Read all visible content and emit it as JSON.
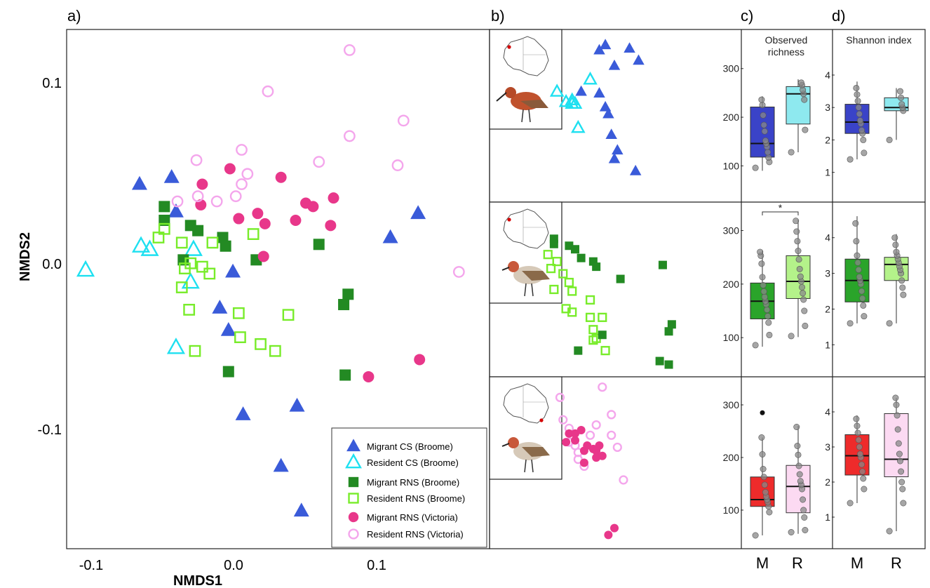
{
  "colors": {
    "migrant_cs": "#3a5bd9",
    "resident_cs": "#1ee0f0",
    "migrant_rns_broome": "#238a23",
    "resident_rns_broome": "#78ec2a",
    "migrant_rns_victoria": "#e8378a",
    "resident_rns_victoria": "#f4a6ec",
    "box_cs_m": "#3a43c8",
    "box_cs_r": "#8ee9ef",
    "box_rns_b_m": "#2aa42a",
    "box_rns_b_r": "#b4f28a",
    "box_rns_v_m": "#ee2b2b",
    "box_rns_v_r": "#fcdaf2"
  },
  "panels": {
    "a": "a)",
    "b": "b)",
    "c": "c)",
    "d": "d)"
  },
  "chart_data": [
    {
      "type": "scatter",
      "panel": "a",
      "xlabel": "NMDS1",
      "ylabel": "NMDS2",
      "xticks": [
        "-0.1",
        "0.0",
        "0.1"
      ],
      "yticks": [
        "0.1",
        "0.0",
        "-0.1"
      ],
      "xlim": [
        -0.115,
        0.175
      ],
      "ylim": [
        -0.172,
        0.13
      ],
      "legend_position": "bottom-right",
      "series": [
        {
          "name": "Migrant CS (Broome)",
          "marker": "triangle-filled",
          "color_key": "migrant_cs",
          "x": [
            -0.065,
            -0.043,
            -0.04,
            -0.001,
            -0.01,
            0.006,
            0.043,
            0.032,
            0.046,
            0.107,
            0.126,
            -0.004
          ],
          "y": [
            0.04,
            0.044,
            0.024,
            -0.011,
            -0.032,
            -0.094,
            -0.089,
            -0.124,
            -0.15,
            0.009,
            0.023,
            -0.045
          ]
        },
        {
          "name": "Resident CS (Broome)",
          "marker": "triangle-open",
          "color_key": "resident_cs",
          "x": [
            -0.102,
            -0.064,
            -0.058,
            -0.028,
            -0.04,
            -0.03
          ],
          "y": [
            -0.01,
            0.004,
            0.002,
            0.002,
            -0.055,
            -0.017
          ]
        },
        {
          "name": "Migrant RNS (Broome)",
          "marker": "square-filled",
          "color_key": "migrant_rns_broome",
          "x": [
            -0.048,
            -0.048,
            -0.03,
            -0.025,
            -0.008,
            -0.006,
            0.015,
            0.058,
            0.078,
            0.075,
            0.076,
            -0.004,
            -0.035
          ],
          "y": [
            0.027,
            0.019,
            0.016,
            0.013,
            0.009,
            0.004,
            -0.004,
            0.005,
            -0.024,
            -0.03,
            -0.071,
            -0.069,
            -0.004
          ]
        },
        {
          "name": "Resident RNS (Broome)",
          "marker": "square-open",
          "color_key": "resident_rns_broome",
          "x": [
            -0.048,
            -0.052,
            -0.036,
            -0.034,
            -0.015,
            -0.03,
            -0.022,
            -0.017,
            0.013,
            -0.036,
            0.003,
            0.037,
            -0.031,
            0.004,
            0.018,
            0.028,
            -0.027
          ],
          "y": [
            0.014,
            0.009,
            0.006,
            -0.009,
            0.006,
            -0.006,
            -0.008,
            -0.012,
            0.011,
            -0.02,
            -0.035,
            -0.036,
            -0.033,
            -0.049,
            -0.053,
            -0.057,
            -0.057
          ]
        },
        {
          "name": "Migrant RNS (Victoria)",
          "marker": "circle-filled",
          "color_key": "migrant_rns_victoria",
          "x": [
            -0.003,
            -0.022,
            0.032,
            0.003,
            0.016,
            0.021,
            -0.023,
            0.042,
            0.049,
            0.054,
            0.066,
            0.068,
            0.02,
            0.092,
            0.127
          ],
          "y": [
            0.049,
            0.04,
            0.044,
            0.02,
            0.023,
            0.017,
            0.028,
            0.019,
            0.029,
            0.027,
            0.016,
            0.032,
            -0.002,
            -0.072,
            -0.062
          ]
        },
        {
          "name": "Resident RNS (Victoria)",
          "marker": "circle-open",
          "color_key": "resident_rns_victoria",
          "x": [
            0.079,
            0.023,
            0.116,
            0.079,
            -0.026,
            0.005,
            0.009,
            0.058,
            0.112,
            -0.039,
            -0.025,
            -0.012,
            0.005,
            0.001,
            0.154
          ],
          "y": [
            0.118,
            0.094,
            0.077,
            0.068,
            0.054,
            0.06,
            0.046,
            0.053,
            0.051,
            0.03,
            0.033,
            0.03,
            0.04,
            0.033,
            -0.011
          ]
        }
      ]
    },
    {
      "type": "scatter",
      "panel": "b",
      "title": "",
      "rows": [
        {
          "group": "CS (Broome)",
          "migrant_color_key": "migrant_cs",
          "resident_color_key": "resident_cs",
          "migrant_marker": "triangle-filled",
          "resident_marker": "triangle-open",
          "migrant": {
            "x": [
              0.34,
              0.36,
              0.34,
              0.36,
              0.28,
              0.37,
              0.39,
              0.38,
              0.39,
              0.4,
              0.46,
              0.44,
              0.47
            ],
            "y": [
              0.88,
              0.91,
              0.63,
              0.55,
              0.64,
              0.51,
              0.79,
              0.39,
              0.25,
              0.3,
              0.18,
              0.89,
              0.82
            ]
          },
          "resident": {
            "x": [
              0.2,
              0.23,
              0.25,
              0.25,
              0.27,
              0.26,
              0.31
            ],
            "y": [
              0.64,
              0.58,
              0.59,
              0.57,
              0.43,
              0.57,
              0.71
            ]
          }
        },
        {
          "group": "RNS (Broome)",
          "migrant_color_key": "migrant_rns_broome",
          "resident_color_key": "resident_rns_broome",
          "migrant_marker": "square-filled",
          "resident_marker": "square-open",
          "migrant": {
            "x": [
              0.19,
              0.19,
              0.24,
              0.26,
              0.28,
              0.32,
              0.33,
              0.41,
              0.55,
              0.57,
              0.58,
              0.57,
              0.54,
              0.27,
              0.35
            ],
            "y": [
              0.79,
              0.76,
              0.75,
              0.73,
              0.68,
              0.66,
              0.63,
              0.56,
              0.64,
              0.26,
              0.3,
              0.07,
              0.09,
              0.15,
              0.24
            ]
          },
          "resident": {
            "x": [
              0.17,
              0.18,
              0.2,
              0.22,
              0.19,
              0.24,
              0.25,
              0.25,
              0.31,
              0.23,
              0.31,
              0.35,
              0.32,
              0.32,
              0.33,
              0.36
            ],
            "y": [
              0.7,
              0.62,
              0.66,
              0.59,
              0.5,
              0.54,
              0.49,
              0.37,
              0.44,
              0.39,
              0.34,
              0.34,
              0.27,
              0.21,
              0.22,
              0.15
            ]
          }
        },
        {
          "group": "RNS (Victoria)",
          "migrant_color_key": "migrant_rns_victoria",
          "resident_color_key": "resident_rns_victoria",
          "migrant_marker": "circle-filled",
          "resident_marker": "circle-open",
          "migrant": {
            "x": [
              0.23,
              0.24,
              0.26,
              0.26,
              0.28,
              0.29,
              0.29,
              0.3,
              0.32,
              0.33,
              0.33,
              0.34,
              0.35,
              0.37,
              0.39
            ],
            "y": [
              0.62,
              0.67,
              0.67,
              0.63,
              0.69,
              0.57,
              0.5,
              0.6,
              0.58,
              0.53,
              0.57,
              0.6,
              0.54,
              0.08,
              0.12
            ]
          },
          "resident": {
            "x": [
              0.21,
              0.22,
              0.24,
              0.24,
              0.26,
              0.27,
              0.27,
              0.29,
              0.31,
              0.33,
              0.35,
              0.38,
              0.38,
              0.4,
              0.42
            ],
            "y": [
              0.88,
              0.75,
              0.7,
              0.62,
              0.6,
              0.56,
              0.52,
              0.48,
              0.66,
              0.72,
              0.94,
              0.78,
              0.66,
              0.59,
              0.4
            ]
          }
        }
      ]
    },
    {
      "type": "box",
      "panel": "c",
      "title": "Observed\nrichness",
      "title_lines": [
        "Observed",
        "richness"
      ],
      "xcategories": [
        "M",
        "R"
      ],
      "rows": [
        {
          "group": "CS (Broome)",
          "yticks": [
            100,
            200,
            300
          ],
          "ylim": [
            40,
            340
          ],
          "boxes": [
            {
              "cat": "M",
              "min": 90,
              "q1": 118,
              "median": 146,
              "q3": 221,
              "max": 243,
              "color_key": "box_cs_m",
              "points": [
                96,
                108,
                117,
                128,
                139,
                146,
                152,
                171,
                184,
                204,
                225,
                236
              ]
            },
            {
              "cat": "R",
              "min": 128,
              "q1": 186,
              "median": 248,
              "q3": 263,
              "max": 278,
              "color_key": "box_cs_r",
              "points": [
                128,
                174,
                236,
                248,
                256,
                266,
                271
              ]
            }
          ],
          "significance": ""
        },
        {
          "group": "RNS (Broome)",
          "yticks": [
            100,
            200,
            300
          ],
          "ylim": [
            40,
            340
          ],
          "boxes": [
            {
              "cat": "M",
              "min": 83,
              "q1": 135,
              "median": 168,
              "q3": 202,
              "max": 262,
              "color_key": "box_rns_b_m",
              "points": [
                86,
                105,
                128,
                140,
                152,
                162,
                168,
                176,
                186,
                198,
                213,
                238,
                253,
                260
              ]
            },
            {
              "cat": "R",
              "min": 101,
              "q1": 173,
              "median": 205,
              "q3": 253,
              "max": 320,
              "color_key": "box_rns_b_r",
              "points": [
                103,
                122,
                150,
                171,
                183,
                194,
                205,
                214,
                228,
                246,
                262,
                280,
                298,
                318
              ]
            }
          ],
          "significance": "*"
        },
        {
          "group": "RNS (Victoria)",
          "yticks": [
            100,
            200,
            300
          ],
          "ylim": [
            40,
            340
          ],
          "boxes": [
            {
              "cat": "M",
              "min": 52,
              "q1": 107,
              "median": 120,
              "q3": 163,
              "max": 238,
              "outliers": [
                285
              ],
              "color_key": "box_rns_v_m",
              "points": [
                52,
                96,
                107,
                115,
                120,
                126,
                134,
                148,
                163,
                178,
                206,
                238
              ]
            },
            {
              "cat": "R",
              "min": 55,
              "q1": 95,
              "median": 145,
              "q3": 185,
              "max": 260,
              "color_key": "box_rns_v_r",
              "points": [
                58,
                62,
                86,
                100,
                120,
                140,
                148,
                155,
                168,
                184,
                205,
                222,
                258
              ]
            }
          ],
          "significance": ""
        }
      ]
    },
    {
      "type": "box",
      "panel": "d",
      "title": "Shannon index",
      "xcategories": [
        "M",
        "R"
      ],
      "rows": [
        {
          "group": "CS (Broome)",
          "yticks": [
            1,
            2,
            3,
            4
          ],
          "ylim": [
            0.3,
            4.8
          ],
          "boxes": [
            {
              "cat": "M",
              "min": 1.4,
              "q1": 2.2,
              "median": 2.55,
              "q3": 3.1,
              "max": 3.8,
              "color_key": "box_cs_m",
              "points": [
                1.4,
                1.6,
                2.0,
                2.2,
                2.3,
                2.5,
                2.6,
                2.8,
                3.0,
                3.2,
                3.4,
                3.6
              ]
            },
            {
              "cat": "R",
              "min": 2.0,
              "q1": 2.9,
              "median": 3.0,
              "q3": 3.3,
              "max": 3.6,
              "color_key": "box_cs_r",
              "points": [
                2.0,
                2.9,
                3.0,
                3.1,
                3.3,
                3.5
              ]
            }
          ]
        },
        {
          "group": "RNS (Broome)",
          "yticks": [
            1,
            2,
            3,
            4
          ],
          "ylim": [
            0.3,
            4.8
          ],
          "boxes": [
            {
              "cat": "M",
              "min": 1.6,
              "q1": 2.2,
              "median": 2.8,
              "q3": 3.4,
              "max": 4.6,
              "color_key": "box_rns_b_m",
              "points": [
                1.6,
                1.8,
                2.1,
                2.3,
                2.5,
                2.7,
                2.8,
                2.9,
                3.1,
                3.3,
                3.5,
                3.9,
                4.4
              ]
            },
            {
              "cat": "R",
              "min": 1.6,
              "q1": 2.8,
              "median": 3.25,
              "q3": 3.45,
              "max": 4.1,
              "color_key": "box_rns_b_r",
              "points": [
                1.6,
                2.4,
                2.6,
                2.8,
                3.0,
                3.1,
                3.2,
                3.3,
                3.4,
                3.5,
                3.6,
                3.8,
                4.0
              ]
            }
          ]
        },
        {
          "group": "RNS (Victoria)",
          "yticks": [
            1,
            2,
            3,
            4
          ],
          "ylim": [
            0.3,
            4.8
          ],
          "boxes": [
            {
              "cat": "M",
              "min": 1.4,
              "q1": 2.2,
              "median": 2.75,
              "q3": 3.35,
              "max": 3.9,
              "color_key": "box_rns_v_m",
              "points": [
                1.4,
                1.8,
                2.1,
                2.3,
                2.5,
                2.7,
                2.8,
                3.0,
                3.2,
                3.4,
                3.6,
                3.8
              ]
            },
            {
              "cat": "R",
              "min": 0.6,
              "q1": 2.15,
              "median": 2.65,
              "q3": 3.95,
              "max": 4.4,
              "color_key": "box_rns_v_r",
              "points": [
                0.6,
                1.4,
                1.8,
                2.0,
                2.3,
                2.6,
                2.8,
                3.1,
                3.5,
                3.9,
                4.2,
                4.4
              ]
            }
          ]
        }
      ]
    }
  ]
}
